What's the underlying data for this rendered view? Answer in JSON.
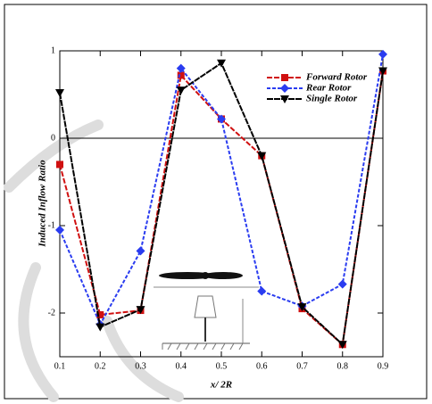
{
  "chart_data": {
    "type": "line",
    "x_label": "x/ 2R",
    "y_label": "Induced Inflow Ratio",
    "x": [
      0.1,
      0.2,
      0.3,
      0.4,
      0.5,
      0.6,
      0.7,
      0.8,
      0.9
    ],
    "series": [
      {
        "name": "Forward Rotor",
        "color": "#d01010",
        "marker": "square",
        "dash": "6,2",
        "values": [
          -0.3,
          -2.02,
          -1.97,
          0.72,
          0.22,
          -0.2,
          -1.95,
          -2.36,
          0.77
        ]
      },
      {
        "name": "Rear Rotor",
        "color": "#2a3cf0",
        "marker": "diamond",
        "dash": "4,2",
        "values": [
          -1.05,
          -2.13,
          -1.29,
          0.8,
          0.22,
          -1.75,
          -1.92,
          -1.67,
          0.96
        ]
      },
      {
        "name": "Single Rotor",
        "color": "#000000",
        "marker": "triangle-down",
        "dash": "7,1",
        "values": [
          0.52,
          -2.16,
          -1.96,
          0.55,
          0.86,
          -0.2,
          -1.93,
          -2.36,
          0.77
        ]
      }
    ],
    "xlim": [
      0.1,
      0.9
    ],
    "ylim": [
      -2.5,
      1
    ],
    "xticks": [
      0.1,
      0.2,
      0.3,
      0.4,
      0.5,
      0.6,
      0.7,
      0.8,
      0.9
    ],
    "yticks": [
      -2,
      -1,
      0,
      1
    ],
    "zero_line": true,
    "legend": "top-right"
  }
}
